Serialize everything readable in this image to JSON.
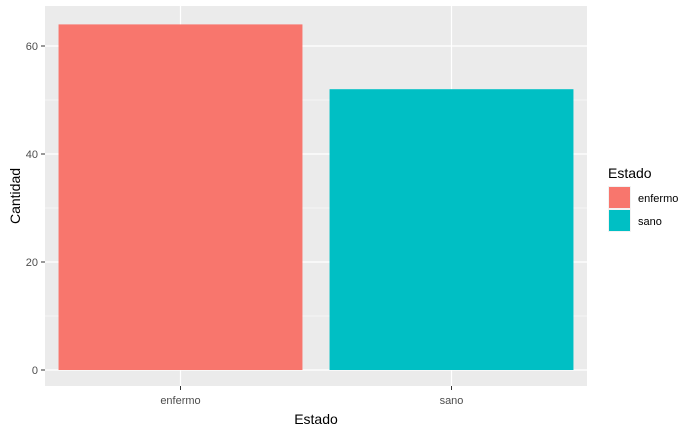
{
  "chart_data": {
    "type": "bar",
    "title": "",
    "xlabel": "Estado",
    "ylabel": "Cantidad",
    "categories": [
      "enfermo",
      "sano"
    ],
    "values": [
      64,
      52
    ],
    "colors": [
      "#F8766D",
      "#00BFC4"
    ],
    "ylim": [
      0,
      67.2
    ],
    "yticks": [
      0,
      20,
      40,
      60
    ],
    "ytick_labels": [
      "0",
      "20",
      "40",
      "60"
    ],
    "grid": true,
    "panel_background": "#EBEBEB",
    "legend": {
      "title": "Estado",
      "position": "right",
      "entries": [
        "enfermo",
        "sano"
      ]
    }
  }
}
